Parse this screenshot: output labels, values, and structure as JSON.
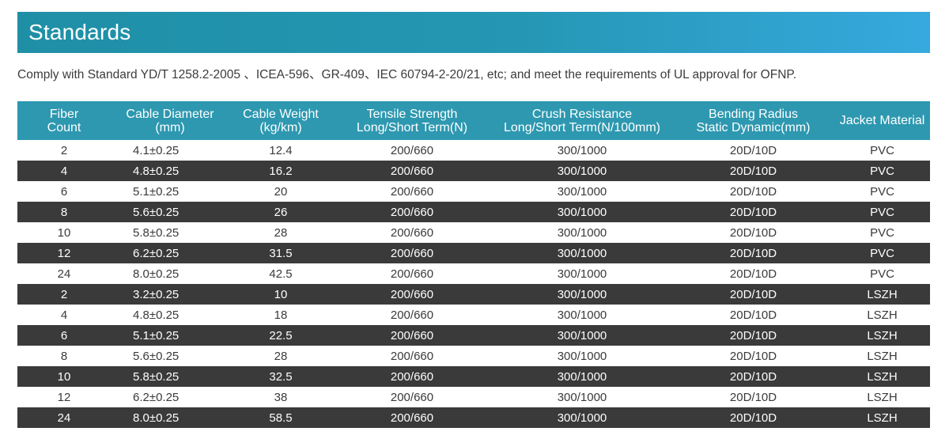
{
  "banner": {
    "title": "Standards"
  },
  "intro": "Comply with Standard YD/T 1258.2-2005 、ICEA-596、GR-409、IEC 60794-2-20/21, etc; and meet the requirements of UL approval for OFNP.",
  "table": {
    "headers": [
      {
        "line1": "Fiber",
        "line2": "Count"
      },
      {
        "line1": "Cable Diameter",
        "line2": "(mm)"
      },
      {
        "line1": "Cable Weight",
        "line2": "(kg/km)"
      },
      {
        "line1": "Tensile Strength",
        "line2": "Long/Short Term(N)"
      },
      {
        "line1": "Crush Resistance",
        "line2": "Long/Short Term(N/100mm)"
      },
      {
        "line1": "Bending Radius",
        "line2": "Static Dynamic(mm)"
      },
      {
        "line1": "Jacket Material",
        "line2": ""
      }
    ],
    "rows": [
      [
        "2",
        "4.1±0.25",
        "12.4",
        "200/660",
        "300/1000",
        "20D/10D",
        "PVC"
      ],
      [
        "4",
        "4.8±0.25",
        "16.2",
        "200/660",
        "300/1000",
        "20D/10D",
        "PVC"
      ],
      [
        "6",
        "5.1±0.25",
        "20",
        "200/660",
        "300/1000",
        "20D/10D",
        "PVC"
      ],
      [
        "8",
        "5.6±0.25",
        "26",
        "200/660",
        "300/1000",
        "20D/10D",
        "PVC"
      ],
      [
        "10",
        "5.8±0.25",
        "28",
        "200/660",
        "300/1000",
        "20D/10D",
        "PVC"
      ],
      [
        "12",
        "6.2±0.25",
        "31.5",
        "200/660",
        "300/1000",
        "20D/10D",
        "PVC"
      ],
      [
        "24",
        "8.0±0.25",
        "42.5",
        "200/660",
        "300/1000",
        "20D/10D",
        "PVC"
      ],
      [
        "2",
        "3.2±0.25",
        "10",
        "200/660",
        "300/1000",
        "20D/10D",
        "LSZH"
      ],
      [
        "4",
        "4.8±0.25",
        "18",
        "200/660",
        "300/1000",
        "20D/10D",
        "LSZH"
      ],
      [
        "6",
        "5.1±0.25",
        "22.5",
        "200/660",
        "300/1000",
        "20D/10D",
        "LSZH"
      ],
      [
        "8",
        "5.6±0.25",
        "28",
        "200/660",
        "300/1000",
        "20D/10D",
        "LSZH"
      ],
      [
        "10",
        "5.8±0.25",
        "32.5",
        "200/660",
        "300/1000",
        "20D/10D",
        "LSZH"
      ],
      [
        "12",
        "6.2±0.25",
        "38",
        "200/660",
        "300/1000",
        "20D/10D",
        "LSZH"
      ],
      [
        "24",
        "8.0±0.25",
        "58.5",
        "200/660",
        "300/1000",
        "20D/10D",
        "LSZH"
      ]
    ]
  },
  "colors": {
    "banner_start": "#1f8fa6",
    "banner_end": "#36a9de",
    "header_bg": "#2d98b0",
    "dark_row_bg": "#3a3a3a",
    "text": "#3a3a3a"
  }
}
